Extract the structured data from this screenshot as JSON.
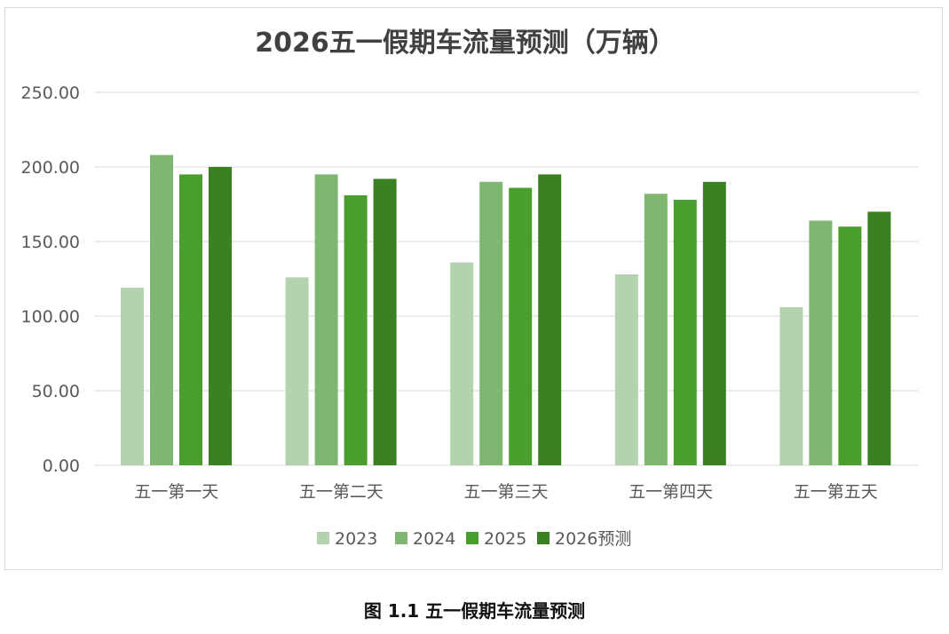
{
  "chart_data": {
    "type": "bar",
    "title": "2026五一假期车流量预测（万辆）",
    "categories": [
      "五一第一天",
      "五一第二天",
      "五一第三天",
      "五一第四天",
      "五一第五天"
    ],
    "series": [
      {
        "name": "2023",
        "color": "#b3d3ae",
        "values": [
          119,
          126,
          136,
          128,
          106
        ]
      },
      {
        "name": "2024",
        "color": "#7fb672",
        "values": [
          208,
          195,
          190,
          182,
          164
        ]
      },
      {
        "name": "2025",
        "color": "#4a9e2d",
        "values": [
          195,
          181,
          186,
          178,
          160
        ]
      },
      {
        "name": "2026预测",
        "color": "#3c8024",
        "values": [
          200,
          192,
          195,
          190,
          170
        ]
      }
    ],
    "ylim": [
      0,
      250
    ],
    "yticks": [
      "0.00",
      "50.00",
      "100.00",
      "150.00",
      "200.00",
      "250.00"
    ],
    "ytick_values": [
      0,
      50,
      100,
      150,
      200,
      250
    ],
    "grid": true,
    "legend": "bottom",
    "xlabel": "",
    "ylabel": ""
  },
  "caption": "图 1.1  五一假期车流量预测"
}
